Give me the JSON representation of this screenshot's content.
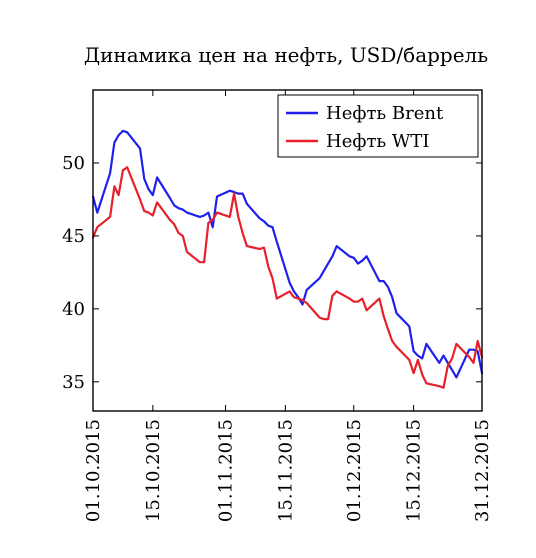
{
  "chart_data": {
    "type": "line",
    "title": "Динамика цен на нефть, USD/баррель",
    "xlabel": "",
    "ylabel": "",
    "x_ticks": [
      "01.10.2015",
      "15.10.2015",
      "01.11.2015",
      "15.11.2015",
      "01.12.2015",
      "15.12.2015",
      "31.12.2015"
    ],
    "x_range": [
      "2015-10-01",
      "2015-12-31"
    ],
    "ylim": [
      33,
      55
    ],
    "y_ticks": [
      35,
      40,
      45,
      50
    ],
    "legend_position": "top-right",
    "grid": false,
    "series": [
      {
        "name": "Нефть Brent",
        "color": "#2020ee",
        "points": [
          [
            "2015-10-01",
            47.7
          ],
          [
            "2015-10-02",
            46.6
          ],
          [
            "2015-10-05",
            49.3
          ],
          [
            "2015-10-06",
            51.4
          ],
          [
            "2015-10-07",
            51.9
          ],
          [
            "2015-10-08",
            52.2
          ],
          [
            "2015-10-09",
            52.1
          ],
          [
            "2015-10-12",
            51.0
          ],
          [
            "2015-10-13",
            48.9
          ],
          [
            "2015-10-14",
            48.2
          ],
          [
            "2015-10-15",
            47.8
          ],
          [
            "2015-10-16",
            49.0
          ],
          [
            "2015-10-19",
            47.6
          ],
          [
            "2015-10-20",
            47.1
          ],
          [
            "2015-10-21",
            46.9
          ],
          [
            "2015-10-22",
            46.8
          ],
          [
            "2015-10-23",
            46.6
          ],
          [
            "2015-10-26",
            46.3
          ],
          [
            "2015-10-27",
            46.4
          ],
          [
            "2015-10-28",
            46.6
          ],
          [
            "2015-10-29",
            45.6
          ],
          [
            "2015-10-30",
            47.7
          ],
          [
            "2015-11-02",
            48.1
          ],
          [
            "2015-11-03",
            48.0
          ],
          [
            "2015-11-04",
            47.9
          ],
          [
            "2015-11-05",
            47.9
          ],
          [
            "2015-11-06",
            47.2
          ],
          [
            "2015-11-09",
            46.2
          ],
          [
            "2015-11-10",
            46.0
          ],
          [
            "2015-11-11",
            45.7
          ],
          [
            "2015-11-12",
            45.6
          ],
          [
            "2015-11-13",
            44.6
          ],
          [
            "2015-11-16",
            41.8
          ],
          [
            "2015-11-17",
            41.2
          ],
          [
            "2015-11-18",
            40.8
          ],
          [
            "2015-11-19",
            40.3
          ],
          [
            "2015-11-20",
            41.3
          ],
          [
            "2015-11-23",
            42.1
          ],
          [
            "2015-11-24",
            42.6
          ],
          [
            "2015-11-25",
            43.1
          ],
          [
            "2015-11-26",
            43.6
          ],
          [
            "2015-11-27",
            44.3
          ],
          [
            "2015-11-30",
            43.6
          ],
          [
            "2015-12-01",
            43.5
          ],
          [
            "2015-12-02",
            43.1
          ],
          [
            "2015-12-03",
            43.3
          ],
          [
            "2015-12-04",
            43.6
          ],
          [
            "2015-12-07",
            41.9
          ],
          [
            "2015-12-08",
            41.9
          ],
          [
            "2015-12-09",
            41.5
          ],
          [
            "2015-12-10",
            40.8
          ],
          [
            "2015-12-11",
            39.7
          ],
          [
            "2015-12-14",
            38.8
          ],
          [
            "2015-12-15",
            37.1
          ],
          [
            "2015-12-16",
            36.8
          ],
          [
            "2015-12-17",
            36.6
          ],
          [
            "2015-12-18",
            37.6
          ],
          [
            "2015-12-21",
            36.3
          ],
          [
            "2015-12-22",
            36.8
          ],
          [
            "2015-12-23",
            36.3
          ],
          [
            "2015-12-24",
            35.8
          ],
          [
            "2015-12-25",
            35.3
          ],
          [
            "2015-12-28",
            37.2
          ],
          [
            "2015-12-29",
            37.2
          ],
          [
            "2015-12-30",
            37.1
          ],
          [
            "2015-12-31",
            35.6
          ]
        ]
      },
      {
        "name": "Нефть WTI",
        "color": "#e8202a",
        "points": [
          [
            "2015-10-01",
            44.9
          ],
          [
            "2015-10-02",
            45.6
          ],
          [
            "2015-10-05",
            46.3
          ],
          [
            "2015-10-06",
            48.4
          ],
          [
            "2015-10-07",
            47.8
          ],
          [
            "2015-10-08",
            49.5
          ],
          [
            "2015-10-09",
            49.7
          ],
          [
            "2015-10-12",
            47.5
          ],
          [
            "2015-10-13",
            46.7
          ],
          [
            "2015-10-14",
            46.6
          ],
          [
            "2015-10-15",
            46.4
          ],
          [
            "2015-10-16",
            47.3
          ],
          [
            "2015-10-19",
            46.1
          ],
          [
            "2015-10-20",
            45.8
          ],
          [
            "2015-10-21",
            45.2
          ],
          [
            "2015-10-22",
            45.0
          ],
          [
            "2015-10-23",
            43.9
          ],
          [
            "2015-10-26",
            43.2
          ],
          [
            "2015-10-27",
            43.2
          ],
          [
            "2015-10-28",
            45.9
          ],
          [
            "2015-10-29",
            46.1
          ],
          [
            "2015-10-30",
            46.6
          ],
          [
            "2015-11-02",
            46.3
          ],
          [
            "2015-11-03",
            47.9
          ],
          [
            "2015-11-04",
            46.3
          ],
          [
            "2015-11-05",
            45.2
          ],
          [
            "2015-11-06",
            44.3
          ],
          [
            "2015-11-09",
            44.1
          ],
          [
            "2015-11-10",
            44.2
          ],
          [
            "2015-11-11",
            42.9
          ],
          [
            "2015-11-12",
            42.1
          ],
          [
            "2015-11-13",
            40.7
          ],
          [
            "2015-11-16",
            41.2
          ],
          [
            "2015-11-17",
            40.8
          ],
          [
            "2015-11-18",
            40.7
          ],
          [
            "2015-11-19",
            40.6
          ],
          [
            "2015-11-20",
            40.4
          ],
          [
            "2015-11-23",
            39.4
          ],
          [
            "2015-11-24",
            39.3
          ],
          [
            "2015-11-25",
            39.3
          ],
          [
            "2015-11-26",
            40.9
          ],
          [
            "2015-11-27",
            41.2
          ],
          [
            "2015-11-30",
            40.7
          ],
          [
            "2015-12-01",
            40.5
          ],
          [
            "2015-12-02",
            40.5
          ],
          [
            "2015-12-03",
            40.7
          ],
          [
            "2015-12-04",
            39.9
          ],
          [
            "2015-12-07",
            40.7
          ],
          [
            "2015-12-08",
            39.5
          ],
          [
            "2015-12-09",
            38.6
          ],
          [
            "2015-12-10",
            37.8
          ],
          [
            "2015-12-11",
            37.4
          ],
          [
            "2015-12-14",
            36.5
          ],
          [
            "2015-12-15",
            35.6
          ],
          [
            "2015-12-16",
            36.5
          ],
          [
            "2015-12-17",
            35.5
          ],
          [
            "2015-12-18",
            34.9
          ],
          [
            "2015-12-21",
            34.7
          ],
          [
            "2015-12-22",
            34.6
          ],
          [
            "2015-12-23",
            36.1
          ],
          [
            "2015-12-24",
            36.6
          ],
          [
            "2015-12-25",
            37.6
          ],
          [
            "2015-12-28",
            36.7
          ],
          [
            "2015-12-29",
            36.3
          ],
          [
            "2015-12-30",
            37.8
          ],
          [
            "2015-12-31",
            36.7
          ]
        ]
      }
    ]
  }
}
